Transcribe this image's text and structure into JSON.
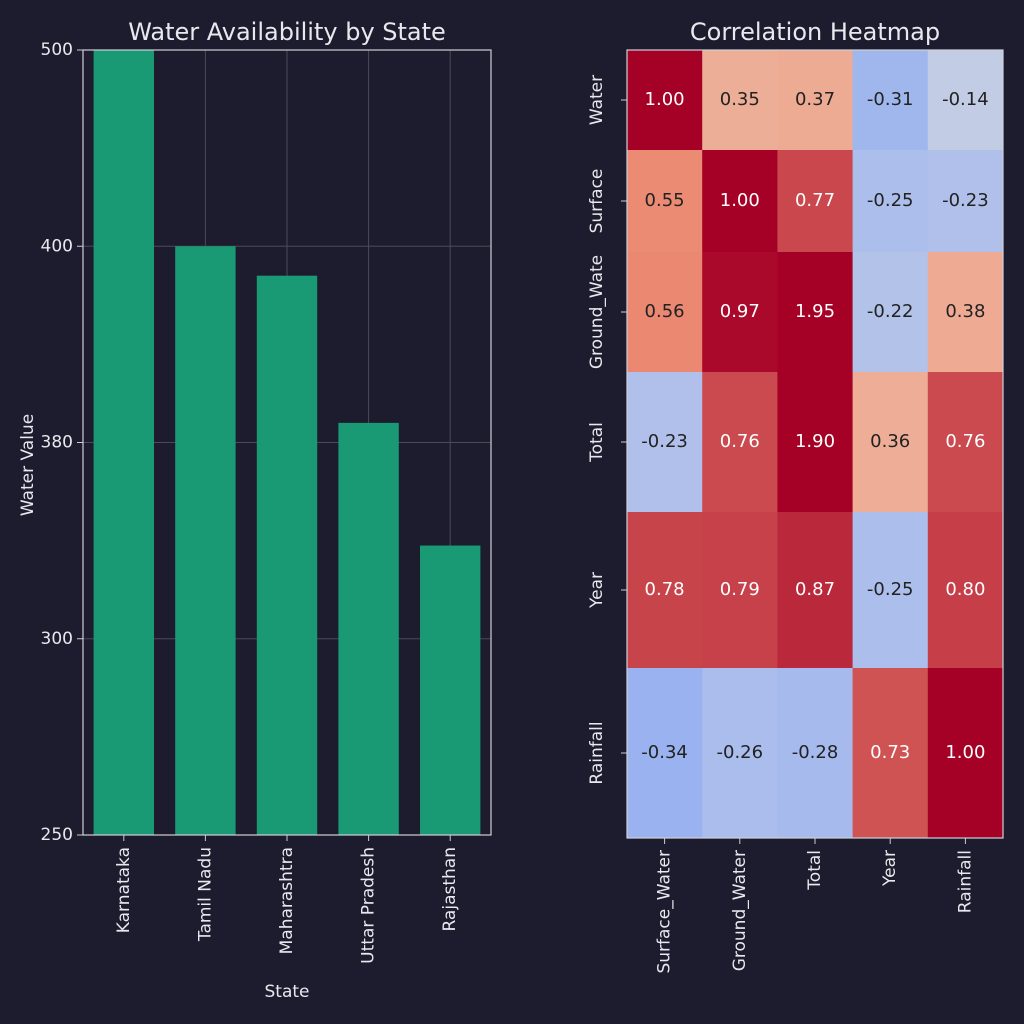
{
  "chart_data": [
    {
      "type": "bar",
      "title": "Water Availability by State",
      "xlabel": "State",
      "ylabel": "Water Value",
      "categories": [
        "Karnataka",
        "Tamil Nadu",
        "Maharashtra",
        "Uttar Pradesh",
        "Rajasthan"
      ],
      "values": [
        500,
        400,
        397,
        382,
        338
      ],
      "color": "#1a9a74",
      "ylim": [
        250,
        500
      ],
      "yticks": [
        250,
        300,
        380,
        400,
        500
      ],
      "grid": true
    },
    {
      "type": "heatmap",
      "title": "Correlation Heatmap",
      "x_categories": [
        "Surface_Water",
        "Ground_Water",
        "Total",
        "Year",
        "Rainfall"
      ],
      "y_categories": [
        "Water",
        "Surface",
        "Ground_Wate",
        "Total",
        "Year",
        "Rainfall"
      ],
      "values": [
        [
          1.0,
          0.35,
          0.37,
          -0.31,
          -0.14
        ],
        [
          0.55,
          1.0,
          0.77,
          -0.25,
          -0.23
        ],
        [
          0.56,
          0.97,
          1.95,
          -0.22,
          0.38
        ],
        [
          -0.23,
          0.76,
          1.9,
          0.36,
          0.76
        ],
        [
          0.78,
          0.79,
          0.87,
          -0.25,
          0.8
        ],
        [
          -0.34,
          -0.26,
          -0.28,
          0.73,
          1.0
        ]
      ],
      "value_labels": [
        [
          "1.00",
          "0.35",
          "0.37",
          "-0.31",
          "-0.14"
        ],
        [
          "0.55",
          "1.00",
          "0.77",
          "-0.25",
          "-0.23"
        ],
        [
          "0.56",
          "0.97",
          "1.95",
          "-0.22",
          "0.38"
        ],
        [
          "-0.23",
          "0.76",
          "1.90",
          "0.36",
          "0.76"
        ],
        [
          "0.78",
          "0.79",
          "0.87",
          "-0.25",
          "0.80"
        ],
        [
          "-0.34",
          "-0.26",
          "-0.28",
          "0.73",
          "1.00"
        ]
      ],
      "colormap": "coolwarm"
    }
  ]
}
